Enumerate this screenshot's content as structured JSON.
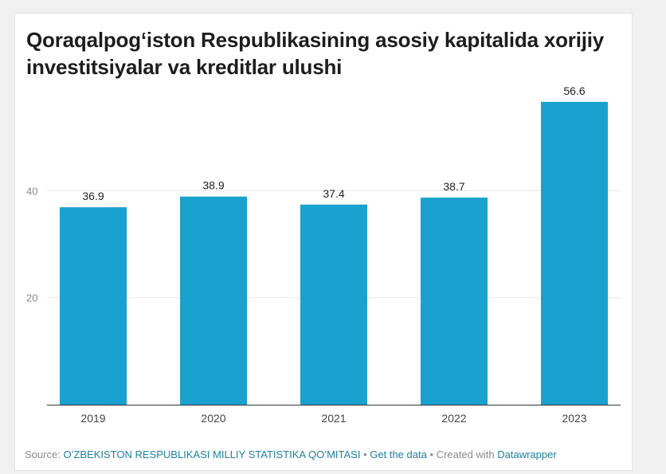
{
  "chart_data": {
    "type": "bar",
    "title": "Qoraqalpog‘iston Respublikasining asosiy kapitalida xorijiy investitsiyalar va kreditlar ulushi",
    "categories": [
      "2019",
      "2020",
      "2021",
      "2022",
      "2023"
    ],
    "values": [
      36.9,
      38.9,
      37.4,
      38.7,
      56.6
    ],
    "value_labels": [
      "36.9",
      "38.9",
      "37.4",
      "38.7",
      "56.6"
    ],
    "yticks": [
      20,
      40
    ],
    "ytick_labels": [
      "20",
      "40"
    ],
    "ylim": [
      0,
      60
    ],
    "xlabel": "",
    "ylabel": "",
    "grid": true,
    "bar_color": "#1aa1cf"
  },
  "footer": {
    "source_label": "Source:",
    "source_name": "O’ZBEKISTON RESPUBLIKASI MILLIY STATISTIKA QO’MITASI",
    "sep1": "•",
    "get_data": "Get the data",
    "sep2": "•",
    "created_with": "Created with",
    "datawrapper": "Datawrapper"
  },
  "colors": {
    "bar": "#1aa1cf",
    "link": "#1d81a2",
    "grid": "#e6e6e6",
    "axis": "#333333"
  }
}
